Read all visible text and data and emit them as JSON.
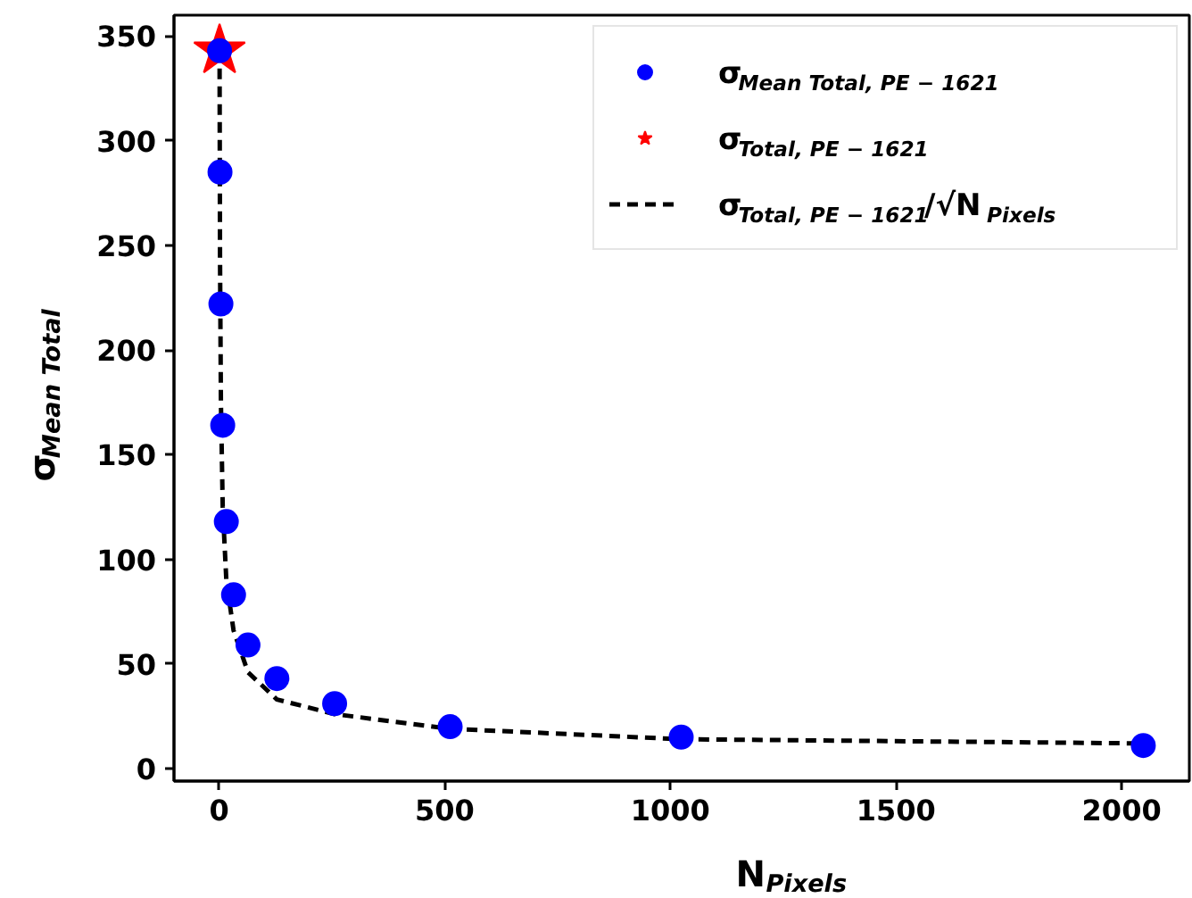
{
  "chart_data": {
    "type": "scatter",
    "xlabel": "N$_{Pixels}$",
    "ylabel": "σ$_{Mean Total}$",
    "xlim": [
      -100,
      2150
    ],
    "ylim": [
      -6,
      360
    ],
    "xticks": [
      0,
      500,
      1000,
      1500,
      2000
    ],
    "yticks": [
      0,
      50,
      100,
      150,
      200,
      250,
      300,
      350
    ],
    "grid": false,
    "legend": "top right",
    "series": [
      {
        "name": "σ$_{Mean Total,  PE − 1621}$",
        "type": "scatter",
        "marker": "circle",
        "color": "#0000ff",
        "x": [
          1,
          2,
          4,
          8,
          16,
          32,
          64,
          128,
          256,
          512,
          1024,
          2048
        ],
        "values": [
          343,
          285,
          222,
          164,
          118,
          83,
          59,
          43,
          31,
          20,
          15,
          11
        ]
      },
      {
        "name": "σ$_{Total,  PE − 1621}$",
        "type": "scatter",
        "marker": "star",
        "color": "#ff0000",
        "x": [
          1
        ],
        "values": [
          343
        ]
      },
      {
        "name": "σ$_{Total,  PE − 1621}$/√N$_{Pixels}$",
        "type": "line",
        "line_style": "dashed",
        "marker": "none",
        "color": "#000000",
        "x": [
          1,
          2,
          4,
          8,
          16,
          32,
          64,
          128,
          256,
          512,
          1024,
          2048
        ],
        "values": [
          343,
          245,
          175,
          125,
          90,
          66,
          46,
          33,
          26,
          19,
          14,
          12
        ]
      }
    ]
  }
}
